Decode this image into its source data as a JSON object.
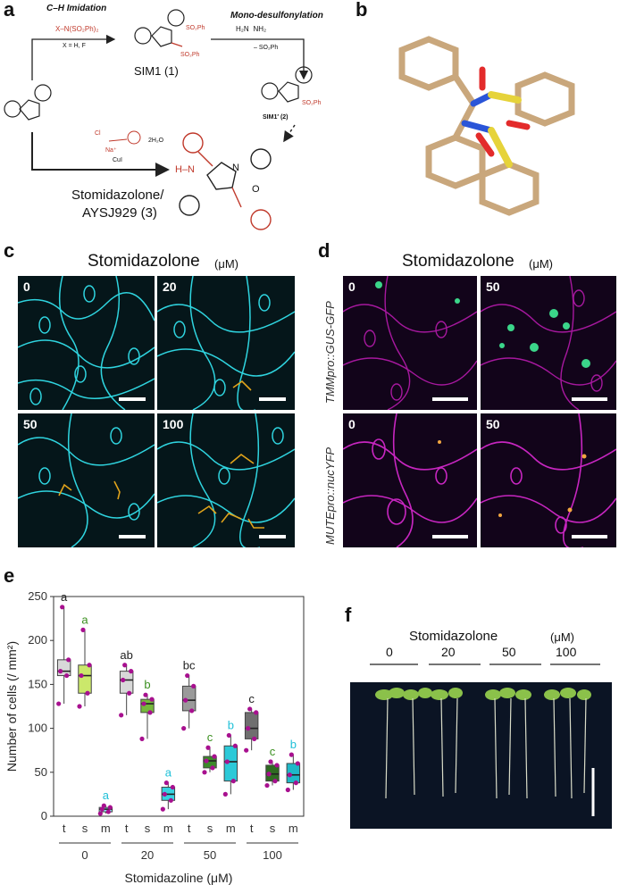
{
  "panels": {
    "a": "a",
    "b": "b",
    "c": "c",
    "d": "d",
    "e": "e",
    "f": "f"
  },
  "scheme": {
    "ch_imidation": "C–H Imidation",
    "reagent1": "X–N(SO₂Ph)₂",
    "reagent1_sub": "X = H, F",
    "mono_desulf": "Mono-desulfonylation",
    "reagent2": "H₂N   NH₂",
    "reagent2_sub": "– SO₂Ph",
    "sim1": "SIM1 (1)",
    "sim1prime": "SIM1′ (2)",
    "cui": "CuI",
    "h2o": "2H₂O",
    "na": "Na⁺",
    "cl": "Cl",
    "stomidazolone": "Stomidazolone/",
    "aysj": "AYSJ929 (3)",
    "so2ph": "SO₂Ph",
    "hn": "H–N",
    "n": "N",
    "o": "O"
  },
  "panel_c": {
    "title": "Stomidazolone",
    "unit": "(μM)",
    "tiles": [
      "0",
      "20",
      "50",
      "100"
    ]
  },
  "panel_d": {
    "title": "Stomidazolone",
    "unit": "(μM)",
    "row1_label": "TMMpro::GUS-GFP",
    "row2_label": "MUTEpro::nucYFP",
    "tiles": [
      "0",
      "50",
      "0",
      "50"
    ]
  },
  "panel_f": {
    "title": "Stomidazolone",
    "unit": "(μM)",
    "doses": [
      "0",
      "20",
      "50",
      "100"
    ]
  },
  "colors": {
    "cyan": "#2fd4df",
    "magenta": "#b0139b",
    "green": "#3a8f1f",
    "yellow_green": "#cbe86b",
    "letter_cyan": "#1fc0d8"
  },
  "chart_data": {
    "type": "boxplot",
    "ylabel": "Number of cells (/ mm²)",
    "xlabel": "Stomidazoline (μM)",
    "ylim": [
      0,
      250
    ],
    "yticks": [
      0,
      50,
      100,
      150,
      200,
      250
    ],
    "groups": [
      "0",
      "20",
      "50",
      "100"
    ],
    "categories": [
      "t",
      "s",
      "m"
    ],
    "boxes": [
      {
        "group": "0",
        "cat": "t",
        "q1": 160,
        "median": 165,
        "q3": 178,
        "min": 128,
        "max": 238,
        "color": "#d8d8d8",
        "letter": "a",
        "letter_color": "#222222"
      },
      {
        "group": "0",
        "cat": "s",
        "q1": 140,
        "median": 160,
        "q3": 172,
        "min": 125,
        "max": 212,
        "color": "#cbe86b",
        "letter": "a",
        "letter_color": "#3a8f1f"
      },
      {
        "group": "0",
        "cat": "m",
        "q1": 5,
        "median": 8,
        "q3": 10,
        "min": 3,
        "max": 12,
        "color": "#8fe7ef",
        "letter": "a",
        "letter_color": "#1fc0d8"
      },
      {
        "group": "20",
        "cat": "t",
        "q1": 140,
        "median": 155,
        "q3": 165,
        "min": 115,
        "max": 172,
        "color": "#d8d8d8",
        "letter": "ab",
        "letter_color": "#222222"
      },
      {
        "group": "20",
        "cat": "s",
        "q1": 118,
        "median": 128,
        "q3": 133,
        "min": 88,
        "max": 138,
        "color": "#76b93c",
        "letter": "b",
        "letter_color": "#3a8f1f"
      },
      {
        "group": "20",
        "cat": "m",
        "q1": 18,
        "median": 25,
        "q3": 33,
        "min": 8,
        "max": 38,
        "color": "#37d3e1",
        "letter": "a",
        "letter_color": "#1fc0d8"
      },
      {
        "group": "50",
        "cat": "t",
        "q1": 120,
        "median": 132,
        "q3": 148,
        "min": 100,
        "max": 160,
        "color": "#9a9a9a",
        "letter": "bc",
        "letter_color": "#222222"
      },
      {
        "group": "50",
        "cat": "s",
        "q1": 55,
        "median": 63,
        "q3": 68,
        "min": 50,
        "max": 78,
        "color": "#3c8a2a",
        "letter": "c",
        "letter_color": "#3a8f1f"
      },
      {
        "group": "50",
        "cat": "m",
        "q1": 40,
        "median": 62,
        "q3": 80,
        "min": 25,
        "max": 92,
        "color": "#2cc9d8",
        "letter": "b",
        "letter_color": "#1fc0d8"
      },
      {
        "group": "100",
        "cat": "t",
        "q1": 88,
        "median": 100,
        "q3": 118,
        "min": 75,
        "max": 122,
        "color": "#6f6f6f",
        "letter": "c",
        "letter_color": "#222222"
      },
      {
        "group": "100",
        "cat": "s",
        "q1": 40,
        "median": 48,
        "q3": 58,
        "min": 35,
        "max": 62,
        "color": "#2f6b22",
        "letter": "c",
        "letter_color": "#3a8f1f"
      },
      {
        "group": "100",
        "cat": "m",
        "q1": 38,
        "median": 47,
        "q3": 60,
        "min": 30,
        "max": 70,
        "color": "#1fb8c8",
        "letter": "b",
        "letter_color": "#1fc0d8"
      }
    ]
  }
}
